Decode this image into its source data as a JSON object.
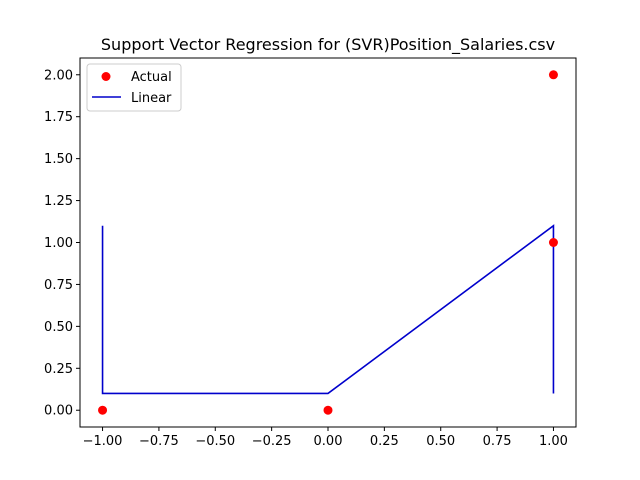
{
  "chart_data": {
    "type": "scatter",
    "title": "Support Vector Regression for (SVR)Position_Salaries.csv",
    "xlabel": "",
    "ylabel": "",
    "xlim": [
      -1.1,
      1.1
    ],
    "ylim": [
      -0.1,
      2.1
    ],
    "grid": false,
    "legend_position": "top-left",
    "x_ticks": [
      -1.0,
      -0.75,
      -0.5,
      -0.25,
      0.0,
      0.25,
      0.5,
      0.75,
      1.0
    ],
    "x_tick_labels": [
      "−1.00",
      "−0.75",
      "−0.50",
      "−0.25",
      "0.00",
      "0.25",
      "0.50",
      "0.75",
      "1.00"
    ],
    "y_ticks": [
      0.0,
      0.25,
      0.5,
      0.75,
      1.0,
      1.25,
      1.5,
      1.75,
      2.0
    ],
    "y_tick_labels": [
      "0.00",
      "0.25",
      "0.50",
      "0.75",
      "1.00",
      "1.25",
      "1.50",
      "1.75",
      "2.00"
    ],
    "series": [
      {
        "name": "Actual",
        "kind": "scatter",
        "color": "#ff0000",
        "points": [
          {
            "x": -1.0,
            "y": 0.0
          },
          {
            "x": 0.0,
            "y": 0.0
          },
          {
            "x": 1.0,
            "y": 1.0
          },
          {
            "x": 1.0,
            "y": 2.0
          }
        ]
      },
      {
        "name": "Linear",
        "kind": "line",
        "color": "#0000cc",
        "points": [
          {
            "x": -1.0,
            "y": 1.1
          },
          {
            "x": -1.0,
            "y": 0.1
          },
          {
            "x": 0.0,
            "y": 0.1
          },
          {
            "x": 1.0,
            "y": 1.1
          },
          {
            "x": 1.0,
            "y": 0.1
          }
        ]
      }
    ]
  }
}
